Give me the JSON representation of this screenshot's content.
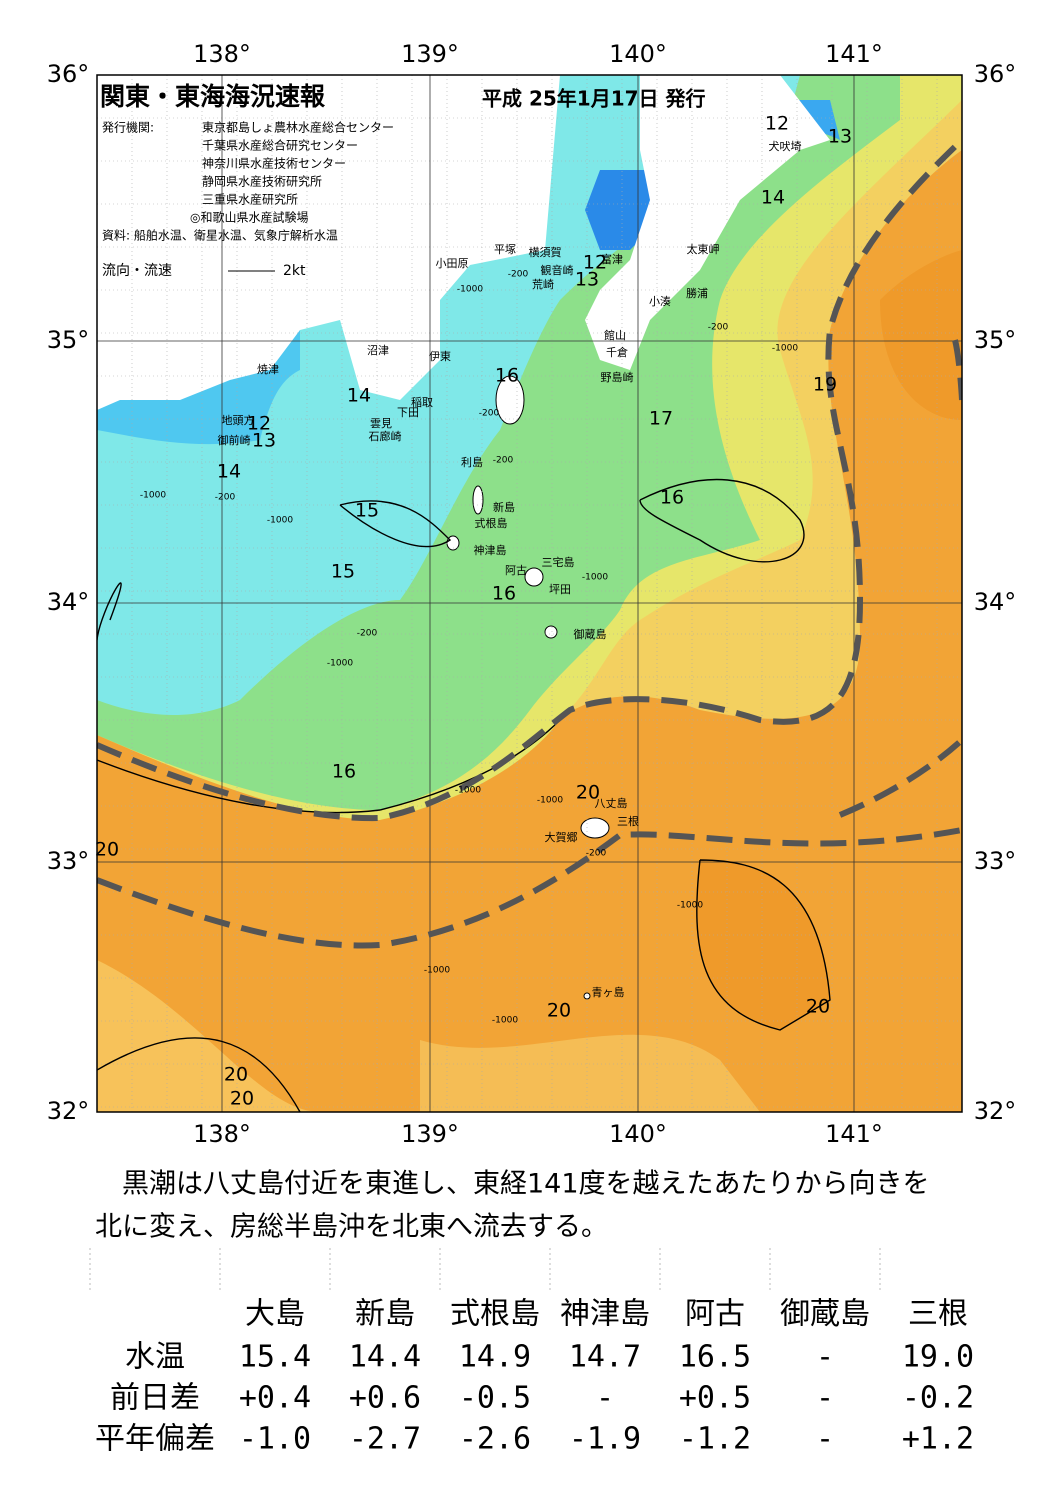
{
  "header": {
    "title": "関東・東海海況速報",
    "date": "平成 25年1月17日 発行",
    "issuer_label": "発行機関:",
    "issuers": [
      "東京都島しょ農林水産総合センター",
      "千葉県水産総合研究センター",
      "神奈川県水産技術センター",
      "静岡県水産技術研究所",
      "三重県水産研究所",
      "◎和歌山県水産試験場"
    ],
    "source": "資料: 船舶水温、衛星水温、気象庁解析水温",
    "legend_label": "流向・流速",
    "legend_scale": "2kt"
  },
  "map": {
    "lon_labels": [
      "138°",
      "139°",
      "140°",
      "141°"
    ],
    "lat_labels": [
      "36°",
      "35°",
      "34°",
      "33°",
      "32°"
    ],
    "places": [
      "犬吠埼",
      "太東岬",
      "勝浦",
      "小湊",
      "富津",
      "横須賀",
      "観音崎",
      "荒崎",
      "平塚",
      "小田原",
      "館山",
      "千倉",
      "野島崎",
      "沼津",
      "焼津",
      "伊東",
      "稲取",
      "下田",
      "雲見",
      "石廊崎",
      "地頭方",
      "御前崎",
      "利島",
      "新島",
      "式根島",
      "神津島",
      "三宅島",
      "阿古",
      "坪田",
      "御蔵島",
      "八丈島",
      "三根",
      "大賀郷",
      "青ヶ島"
    ],
    "contours": [
      "12",
      "13",
      "14",
      "12",
      "13",
      "16",
      "14",
      "12",
      "13",
      "14",
      "17",
      "16",
      "15",
      "15",
      "16",
      "19",
      "16",
      "20",
      "20",
      "20",
      "20",
      "20",
      "20"
    ],
    "depth_labels": [
      "-1000",
      "-200",
      "-1000",
      "-200",
      "-200",
      "-200",
      "-1000",
      "-200",
      "-1000",
      "-200",
      "-1000",
      "-1000",
      "-1000",
      "-1000",
      "-200",
      "-1000",
      "-1000",
      "-1000"
    ]
  },
  "description": [
    "黒潮は八丈島付近を東進し、東経141度を越えたあたりから向きを",
    "北に変え、房総半島沖を北東へ流去する。"
  ],
  "table": {
    "columns": [
      "大島",
      "新島",
      "式根島",
      "神津島",
      "阿古",
      "御蔵島",
      "三根"
    ],
    "rows": [
      {
        "label": "水温",
        "cells": [
          "15.4",
          "14.4",
          "14.9",
          "14.7",
          "16.5",
          "-",
          "19.0"
        ]
      },
      {
        "label": "前日差",
        "cells": [
          "+0.4",
          "+0.6",
          "-0.5",
          "-",
          "+0.5",
          "-",
          "-0.2"
        ]
      },
      {
        "label": "平年偏差",
        "cells": [
          "-1.0",
          "-2.7",
          "-2.6",
          "-1.9",
          "-1.2",
          "-",
          "+1.2"
        ]
      }
    ]
  }
}
